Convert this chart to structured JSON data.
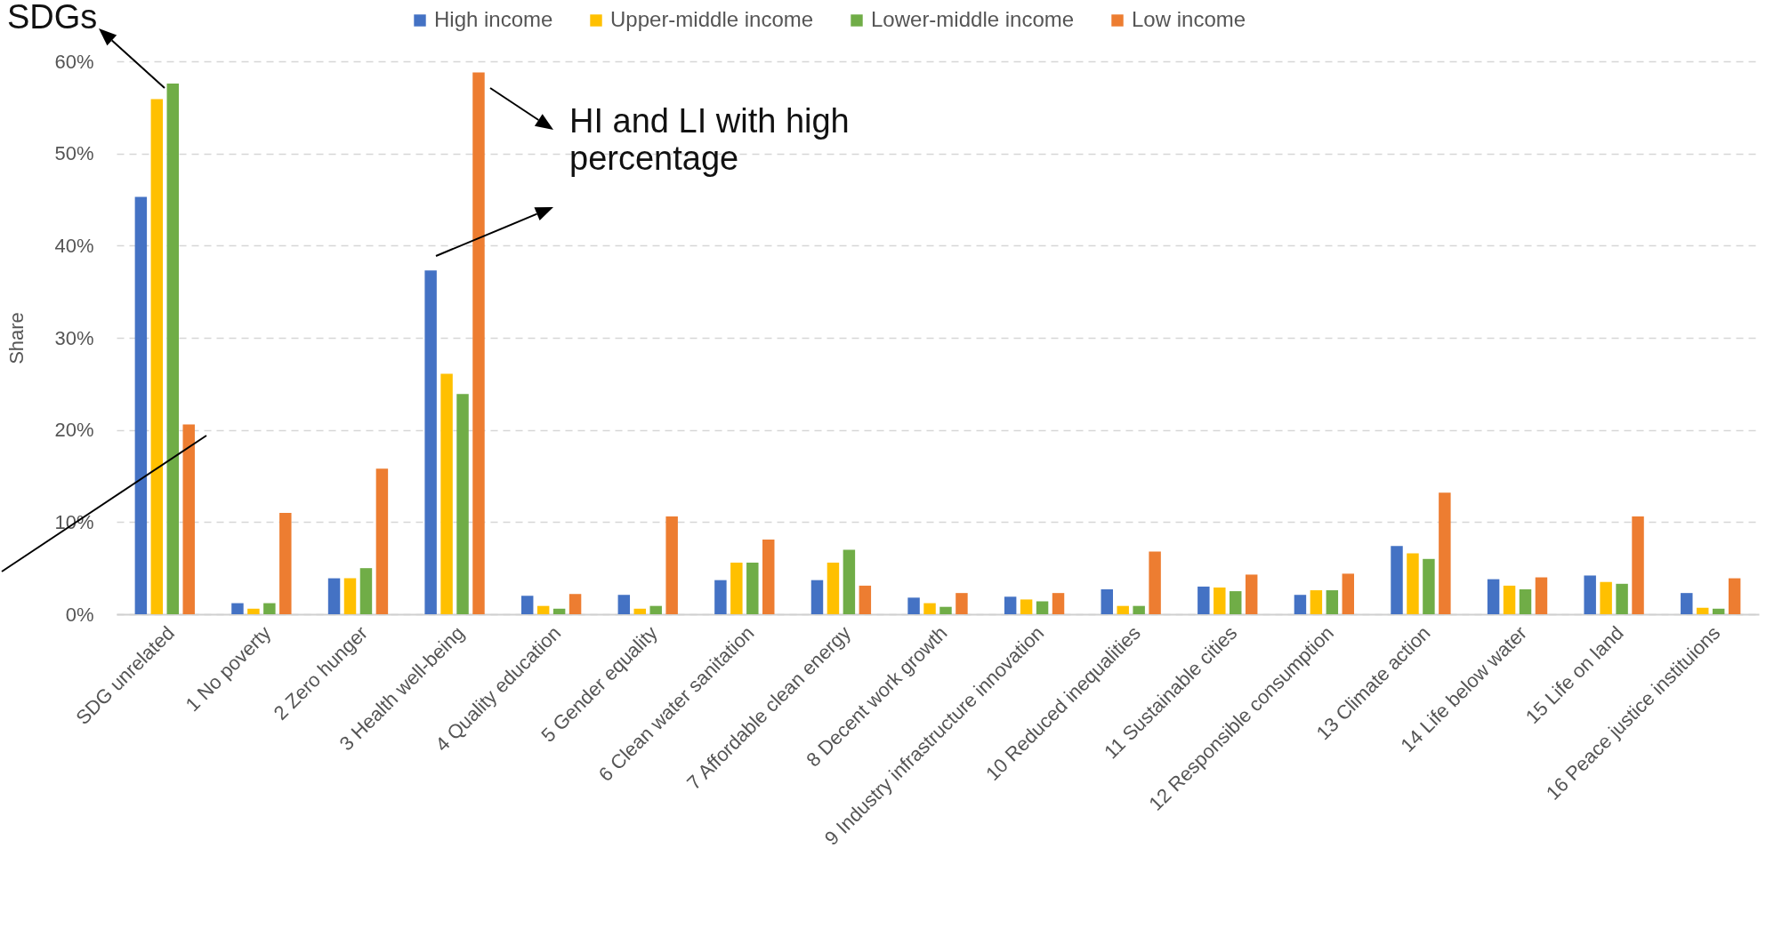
{
  "chart_data": {
    "type": "bar",
    "categories": [
      "SDG unrelated",
      "1 No poverty",
      "2 Zero hunger",
      "3 Health well-being",
      "4 Quality education",
      "5 Gender equality",
      "6 Clean water sanitation",
      "7 Affordable clean energy",
      "8 Decent work growth",
      "9 Industry infrastructure innovation",
      "10 Reduced inequalities",
      "11 Sustainable cities",
      "12 Responsible consumption",
      "13 Climate action",
      "14 Life below water",
      "15 Life on land",
      "16 Peace justice instituions"
    ],
    "series": [
      {
        "name": "High income",
        "color": "#4472c4",
        "values": [
          45.3,
          1.2,
          3.9,
          37.3,
          2.0,
          2.1,
          3.7,
          3.7,
          1.8,
          1.9,
          2.7,
          3.0,
          2.1,
          7.4,
          3.8,
          4.2,
          2.3
        ]
      },
      {
        "name": "Upper-middle income",
        "color": "#ffc000",
        "values": [
          55.9,
          0.6,
          3.9,
          26.1,
          0.9,
          0.6,
          5.6,
          5.6,
          1.2,
          1.6,
          0.9,
          2.9,
          2.6,
          6.6,
          3.1,
          3.5,
          0.7
        ]
      },
      {
        "name": "Lower-middle income",
        "color": "#70ad47",
        "values": [
          57.6,
          1.2,
          5.0,
          23.9,
          0.6,
          0.9,
          5.6,
          7.0,
          0.8,
          1.4,
          0.9,
          2.5,
          2.6,
          6.0,
          2.7,
          3.3,
          0.6
        ]
      },
      {
        "name": "Low income",
        "color": "#ed7d31",
        "values": [
          20.6,
          11.0,
          15.8,
          58.8,
          2.2,
          10.6,
          8.1,
          3.1,
          2.3,
          2.3,
          6.8,
          4.3,
          4.4,
          13.2,
          4.0,
          10.6,
          3.9
        ]
      }
    ],
    "ylabel": "Share",
    "ylim": [
      0,
      60
    ],
    "yticks": [
      {
        "value": 0,
        "label": "0%"
      },
      {
        "value": 10,
        "label": "10%"
      },
      {
        "value": 20,
        "label": "20%"
      },
      {
        "value": 30,
        "label": "30%"
      },
      {
        "value": 40,
        "label": "40%"
      },
      {
        "value": 50,
        "label": "50%"
      },
      {
        "value": 60,
        "label": "60%"
      }
    ],
    "grid": "y",
    "legend": "top",
    "annotations": [
      "SDGs",
      "HI and LI with high percentage"
    ]
  }
}
